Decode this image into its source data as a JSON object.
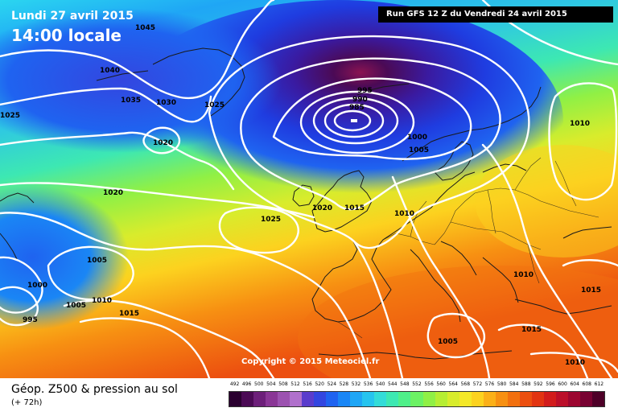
{
  "header": {
    "date_label": "Lundi 27 avril 2015",
    "time_label": "14:00 locale",
    "run_label": "Run GFS 12 Z du Vendredi 24 avril 2015"
  },
  "copyright": "Copyright © 2015 Meteociel.fr",
  "footer": {
    "caption": "Géop. Z500 & pression au sol",
    "lead_time": "(+ 72h)"
  },
  "isobar_labels": [
    "1045",
    "1040",
    "1035",
    "1030",
    "1025",
    "1025",
    "1020",
    "1020",
    "1025",
    "1020",
    "1015",
    "1010",
    "1005",
    "1000",
    "995",
    "990",
    "985",
    "1010",
    "1005",
    "1000",
    "1005",
    "1010",
    "995",
    "1015",
    "1010",
    "1015",
    "1015",
    "1005",
    "1010"
  ],
  "color_scale": {
    "labels": [
      "492",
      "496",
      "500",
      "504",
      "508",
      "512",
      "516",
      "520",
      "524",
      "528",
      "532",
      "536",
      "540",
      "544",
      "548",
      "552",
      "556",
      "560",
      "564",
      "568",
      "572",
      "576",
      "580",
      "584",
      "588",
      "592",
      "596",
      "600",
      "604",
      "608",
      "612"
    ],
    "colors": [
      "#2a0030",
      "#4b0a55",
      "#6d1f7a",
      "#8a3696",
      "#9c52b0",
      "#b070cc",
      "#5a3ccc",
      "#3346e0",
      "#1f63f0",
      "#1a86f5",
      "#1fa6f5",
      "#26c4ee",
      "#33dcd8",
      "#3de8b2",
      "#4ff08a",
      "#6cf264",
      "#90f045",
      "#b6ee33",
      "#d8ec2c",
      "#f4e828",
      "#fcd21f",
      "#fbb018",
      "#f79012",
      "#f2700f",
      "#ec4f10",
      "#e23412",
      "#d21c1c",
      "#bb0f2a",
      "#9c0630",
      "#780232",
      "#4e0028"
    ]
  }
}
